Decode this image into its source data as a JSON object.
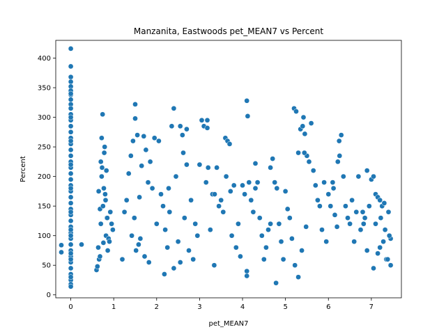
{
  "chart_data": {
    "type": "scatter",
    "title": "Manzanita, Eastwoods pet_MEAN7 vs Percent",
    "xlabel": "pet_MEAN7",
    "ylabel": "Percent",
    "xlim": [
      -0.35,
      7.7
    ],
    "ylim": [
      -5,
      430
    ],
    "xticks": [
      0,
      1,
      2,
      3,
      4,
      5,
      6,
      7
    ],
    "yticks": [
      0,
      50,
      100,
      150,
      200,
      250,
      300,
      350,
      400
    ],
    "color": "#1f77b4",
    "grid": false,
    "legend": "none",
    "x": [
      -0.22,
      -0.22,
      0.25,
      0,
      0,
      0,
      0,
      0,
      0,
      0,
      0,
      0,
      0,
      0,
      0,
      0,
      0,
      0,
      0,
      0,
      0,
      0,
      0,
      0,
      0,
      0,
      0,
      0,
      0,
      0,
      0,
      0,
      0,
      0,
      0,
      0,
      0,
      0,
      0,
      0,
      0,
      0,
      0,
      0,
      0,
      0,
      0,
      0,
      0,
      0,
      0,
      0,
      0,
      0,
      0,
      0.6,
      0.62,
      0.65,
      0.66,
      0.68,
      0.7,
      0.72,
      0.72,
      0.74,
      0.75,
      0.76,
      0.78,
      0.8,
      0.82,
      0.84,
      0.86,
      0.88,
      0.9,
      0.92,
      0.95,
      0.98,
      0.7,
      0.73,
      0.77,
      0.81,
      0.85,
      0.64,
      0.68,
      0.79,
      0.83,
      1.2,
      1.25,
      1.3,
      1.35,
      1.4,
      1.45,
      1.5,
      1.5,
      1.55,
      1.6,
      1.65,
      1.7,
      1.75,
      1.8,
      1.85,
      1.9,
      1.95,
      2.0,
      1.52,
      1.62,
      1.72,
      1.82,
      1.42,
      1.58,
      1.48,
      2.05,
      2.1,
      2.15,
      2.2,
      2.25,
      2.3,
      2.35,
      2.4,
      2.45,
      2.5,
      2.55,
      2.6,
      2.65,
      2.7,
      2.75,
      2.8,
      2.85,
      2.9,
      2.95,
      2.4,
      2.55,
      2.62,
      2.7,
      2.28,
      2.18,
      3.0,
      3.05,
      3.1,
      3.15,
      3.2,
      3.25,
      3.3,
      3.35,
      3.4,
      3.45,
      3.5,
      3.55,
      3.6,
      3.65,
      3.7,
      3.75,
      3.8,
      3.85,
      3.9,
      3.95,
      3.18,
      3.18,
      3.62,
      3.72,
      3.34,
      4.0,
      4.05,
      4.1,
      4.12,
      4.15,
      4.2,
      4.25,
      4.3,
      4.35,
      4.4,
      4.45,
      4.5,
      4.55,
      4.6,
      4.65,
      4.7,
      4.75,
      4.8,
      4.85,
      4.9,
      4.95,
      4.1,
      4.1,
      4.3,
      4.65,
      4.78,
      5.0,
      5.05,
      5.1,
      5.15,
      5.2,
      5.25,
      5.3,
      5.35,
      5.4,
      5.45,
      5.5,
      5.55,
      5.6,
      5.65,
      5.7,
      5.75,
      5.8,
      5.85,
      5.9,
      5.95,
      5.22,
      5.3,
      5.42,
      5.44,
      5.48,
      5.38,
      6.0,
      6.05,
      6.1,
      6.15,
      6.2,
      6.25,
      6.3,
      6.35,
      6.4,
      6.45,
      6.5,
      6.55,
      6.6,
      6.65,
      6.7,
      6.75,
      6.8,
      6.85,
      6.9,
      6.95,
      6.26,
      6.22,
      6.12,
      6.82,
      6.9,
      7.0,
      7.05,
      7.1,
      7.15,
      7.2,
      7.25,
      7.3,
      7.35,
      7.4,
      7.45,
      7.1,
      7.2,
      7.32,
      7.05,
      7.38,
      7.42,
      7.22,
      7.15,
      7.28,
      7.45
    ],
    "y": [
      84,
      72,
      85,
      416,
      386,
      368,
      360,
      352,
      345,
      338,
      330,
      322,
      315,
      305,
      295,
      285,
      275,
      265,
      255,
      245,
      235,
      225,
      215,
      205,
      195,
      185,
      175,
      165,
      155,
      145,
      135,
      125,
      115,
      105,
      95,
      85,
      75,
      65,
      55,
      45,
      35,
      25,
      18,
      14,
      340,
      300,
      260,
      220,
      180,
      140,
      100,
      60,
      30,
      70,
      110,
      42,
      48,
      175,
      60,
      145,
      120,
      265,
      200,
      305,
      150,
      88,
      240,
      170,
      100,
      130,
      75,
      95,
      90,
      140,
      120,
      110,
      225,
      215,
      180,
      160,
      130,
      80,
      65,
      250,
      210,
      60,
      140,
      160,
      205,
      235,
      260,
      322,
      298,
      270,
      165,
      218,
      268,
      245,
      190,
      225,
      180,
      265,
      120,
      75,
      95,
      65,
      55,
      100,
      85,
      130,
      260,
      170,
      150,
      110,
      80,
      140,
      285,
      315,
      200,
      90,
      285,
      270,
      130,
      280,
      75,
      160,
      60,
      120,
      100,
      45,
      55,
      240,
      220,
      180,
      35,
      220,
      295,
      285,
      190,
      215,
      110,
      170,
      170,
      215,
      150,
      160,
      140,
      265,
      260,
      255,
      100,
      185,
      80,
      120,
      65,
      295,
      282,
      200,
      175,
      50,
      185,
      170,
      328,
      302,
      190,
      160,
      140,
      222,
      190,
      130,
      100,
      60,
      80,
      110,
      215,
      230,
      190,
      180,
      120,
      90,
      60,
      40,
      32,
      180,
      120,
      20,
      175,
      145,
      130,
      95,
      315,
      310,
      240,
      280,
      285,
      272,
      235,
      225,
      290,
      210,
      185,
      160,
      150,
      110,
      190,
      90,
      50,
      30,
      300,
      240,
      115,
      75,
      170,
      150,
      190,
      135,
      115,
      260,
      270,
      200,
      150,
      130,
      120,
      160,
      90,
      140,
      200,
      110,
      140,
      130,
      210,
      150,
      235,
      225,
      180,
      120,
      75,
      195,
      200,
      170,
      165,
      160,
      150,
      155,
      60,
      140,
      95,
      120,
      80,
      110,
      45,
      60,
      100,
      130,
      70,
      90,
      50
    ]
  }
}
